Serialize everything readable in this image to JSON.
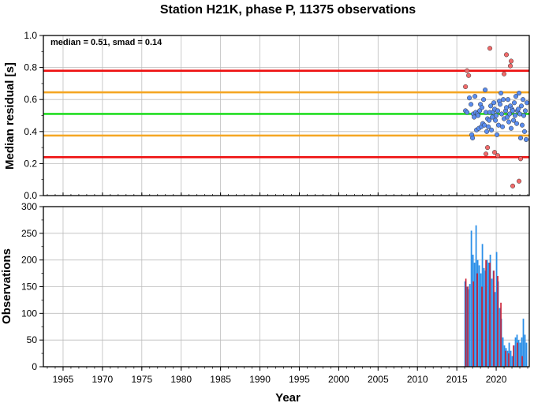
{
  "chart_data": [
    {
      "type": "scatter",
      "title": "Station H21K, phase P, 11375 observations",
      "ylabel": "Median residual [s]",
      "annotation": "median = 0.51, smad = 0.14",
      "xlim": [
        1962.5,
        2024.2
      ],
      "ylim": [
        0,
        1.0
      ],
      "yticks": [
        "0.0",
        "0.2",
        "0.4",
        "0.6",
        "0.8",
        "1.0"
      ],
      "grid": true,
      "reference_lines": [
        {
          "value": 0.78,
          "color": "#ee1111"
        },
        {
          "value": 0.645,
          "color": "#f5a623"
        },
        {
          "value": 0.51,
          "color": "#22dd22"
        },
        {
          "value": 0.375,
          "color": "#f5a623"
        },
        {
          "value": 0.24,
          "color": "#ee1111"
        }
      ],
      "point_colors": {
        "inlier": "#5b8def",
        "outlier": "#f06a6a"
      },
      "series": [
        {
          "points": [
            [
              2016.1,
              0.53
            ],
            [
              2016.3,
              0.52
            ],
            [
              2016.6,
              0.61
            ],
            [
              2016.8,
              0.57
            ],
            [
              2016.9,
              0.38
            ],
            [
              2017.0,
              0.36
            ],
            [
              2017.1,
              0.51
            ],
            [
              2017.2,
              0.49
            ],
            [
              2017.3,
              0.62
            ],
            [
              2017.4,
              0.52
            ],
            [
              2017.5,
              0.41
            ],
            [
              2017.6,
              0.51
            ],
            [
              2017.7,
              0.5
            ],
            [
              2017.8,
              0.42
            ],
            [
              2017.9,
              0.53
            ],
            [
              2018.0,
              0.57
            ],
            [
              2018.1,
              0.43
            ],
            [
              2018.2,
              0.55
            ],
            [
              2018.3,
              0.45
            ],
            [
              2018.4,
              0.6
            ],
            [
              2018.5,
              0.44
            ],
            [
              2018.6,
              0.66
            ],
            [
              2018.7,
              0.52
            ],
            [
              2018.8,
              0.4
            ],
            [
              2018.9,
              0.48
            ],
            [
              2019.0,
              0.43
            ],
            [
              2019.1,
              0.47
            ],
            [
              2019.2,
              0.52
            ],
            [
              2019.3,
              0.56
            ],
            [
              2019.4,
              0.41
            ],
            [
              2019.5,
              0.49
            ],
            [
              2019.6,
              0.52
            ],
            [
              2019.7,
              0.58
            ],
            [
              2019.8,
              0.54
            ],
            [
              2019.9,
              0.47
            ],
            [
              2020.0,
              0.5
            ],
            [
              2020.1,
              0.38
            ],
            [
              2020.2,
              0.53
            ],
            [
              2020.3,
              0.44
            ],
            [
              2020.4,
              0.59
            ],
            [
              2020.5,
              0.57
            ],
            [
              2020.6,
              0.64
            ],
            [
              2020.7,
              0.51
            ],
            [
              2020.8,
              0.43
            ],
            [
              2020.9,
              0.6
            ],
            [
              2021.0,
              0.48
            ],
            [
              2021.2,
              0.53
            ],
            [
              2021.3,
              0.55
            ],
            [
              2021.4,
              0.49
            ],
            [
              2021.5,
              0.6
            ],
            [
              2021.6,
              0.46
            ],
            [
              2021.7,
              0.51
            ],
            [
              2021.8,
              0.56
            ],
            [
              2021.9,
              0.42
            ],
            [
              2022.0,
              0.54
            ],
            [
              2022.1,
              0.53
            ],
            [
              2022.2,
              0.47
            ],
            [
              2022.3,
              0.58
            ],
            [
              2022.4,
              0.5
            ],
            [
              2022.5,
              0.62
            ],
            [
              2022.6,
              0.45
            ],
            [
              2022.7,
              0.53
            ],
            [
              2022.8,
              0.54
            ],
            [
              2022.9,
              0.64
            ],
            [
              2023.0,
              0.51
            ],
            [
              2023.1,
              0.36
            ],
            [
              2023.2,
              0.56
            ],
            [
              2023.3,
              0.44
            ],
            [
              2023.4,
              0.6
            ],
            [
              2023.5,
              0.5
            ],
            [
              2023.6,
              0.4
            ],
            [
              2023.7,
              0.53
            ],
            [
              2023.8,
              0.35
            ],
            [
              2023.9,
              0.58
            ]
          ]
        },
        {
          "points": [
            [
              2016.1,
              0.68
            ],
            [
              2016.3,
              0.78
            ],
            [
              2016.5,
              0.75
            ],
            [
              2019.2,
              0.92
            ],
            [
              2018.7,
              0.26
            ],
            [
              2018.9,
              0.3
            ],
            [
              2019.8,
              0.27
            ],
            [
              2020.2,
              0.25
            ],
            [
              2021.3,
              0.88
            ],
            [
              2021.0,
              0.76
            ],
            [
              2021.9,
              0.84
            ],
            [
              2021.8,
              0.81
            ],
            [
              2022.1,
              0.06
            ],
            [
              2022.9,
              0.09
            ],
            [
              2023.1,
              0.23
            ]
          ]
        }
      ]
    },
    {
      "type": "bar",
      "ylabel": "Observations",
      "xlabel": "Year",
      "xlim": [
        1962.5,
        2024.2
      ],
      "ylim": [
        0,
        300
      ],
      "yticks": [
        "0",
        "50",
        "100",
        "150",
        "200",
        "250",
        "300"
      ],
      "xticks": [
        "1965",
        "1970",
        "1975",
        "1980",
        "1985",
        "1990",
        "1995",
        "2000",
        "2005",
        "2010",
        "2015",
        "2020"
      ],
      "grid": true,
      "bar_colors": {
        "blue": "#2b8fe8",
        "red": "#cc1a2e"
      },
      "series": [
        {
          "x": [
            2016.05,
            2016.25,
            2016.45,
            2016.65,
            2016.85,
            2017.05,
            2017.25,
            2017.45,
            2017.65,
            2017.85,
            2018.05,
            2018.25,
            2018.45,
            2018.65,
            2018.85,
            2019.05,
            2019.25,
            2019.45,
            2019.65,
            2019.85,
            2020.05,
            2020.25,
            2020.45,
            2020.65,
            2020.85,
            2021.05,
            2021.25,
            2021.45,
            2021.65,
            2021.85,
            2022.05,
            2022.25,
            2022.45,
            2022.65,
            2022.85,
            2023.05,
            2023.25,
            2023.45,
            2023.65,
            2023.85
          ],
          "values": [
            160,
            150,
            145,
            155,
            255,
            210,
            195,
            265,
            200,
            190,
            175,
            230,
            185,
            180,
            200,
            195,
            210,
            165,
            180,
            140,
            215,
            160,
            110,
            90,
            55,
            40,
            35,
            30,
            45,
            30,
            20,
            40,
            55,
            60,
            50,
            45,
            55,
            90,
            60,
            45
          ]
        },
        {
          "x": [
            2016.15,
            2016.4,
            2017.1,
            2017.6,
            2018.2,
            2018.7,
            2019.2,
            2019.7,
            2020.2,
            2020.6,
            2021.2,
            2021.6,
            2022.2,
            2022.7,
            2023.3
          ],
          "values": [
            165,
            150,
            160,
            175,
            150,
            200,
            195,
            180,
            170,
            120,
            30,
            25,
            40,
            45,
            20
          ]
        }
      ]
    }
  ]
}
